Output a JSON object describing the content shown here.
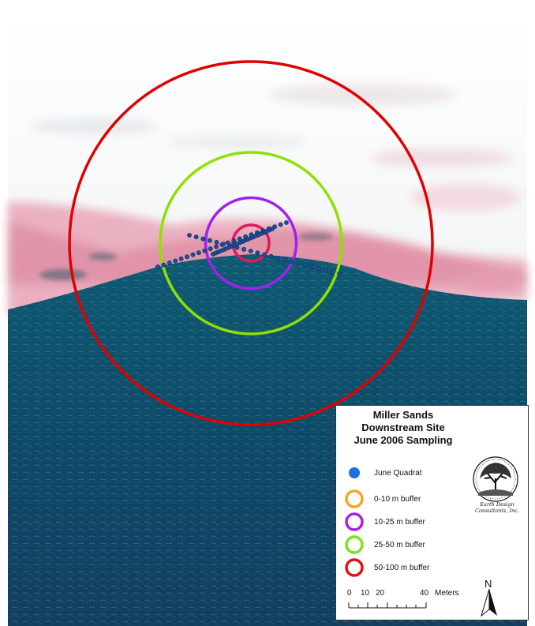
{
  "map": {
    "buffer_rings": [
      {
        "name": "0-10 m buffer",
        "radius_m": 10,
        "color": "#e0185c"
      },
      {
        "name": "10-25 m buffer",
        "radius_m": 25,
        "color": "#a020f0"
      },
      {
        "name": "25-50 m buffer",
        "radius_m": 50,
        "color": "#90e000"
      },
      {
        "name": "50-100 m buffer",
        "radius_m": 100,
        "color": "#e00000"
      }
    ],
    "quadrat_color": "#1e4f9a"
  },
  "legend": {
    "title_lines": [
      "Miller Sands",
      "Downstream Site",
      "June 2006 Sampling"
    ],
    "items": [
      {
        "label": "June Quadrat",
        "symbol": "dot",
        "color": "#1e6fe0"
      },
      {
        "label": "0-10 m buffer",
        "symbol": "ring",
        "color": "#f5a623"
      },
      {
        "label": "10-25 m buffer",
        "symbol": "ring",
        "color": "#b01ee0"
      },
      {
        "label": "25-50 m buffer",
        "symbol": "ring",
        "color": "#7fe01a"
      },
      {
        "label": "50-100 m buffer",
        "symbol": "ring",
        "color": "#e01010"
      }
    ],
    "logo_text": [
      "Earth Design",
      "Consultants, Inc."
    ],
    "scale": {
      "ticks": [
        "0",
        "10",
        "20",
        "40"
      ],
      "unit": "Meters"
    },
    "north_label": "N"
  }
}
